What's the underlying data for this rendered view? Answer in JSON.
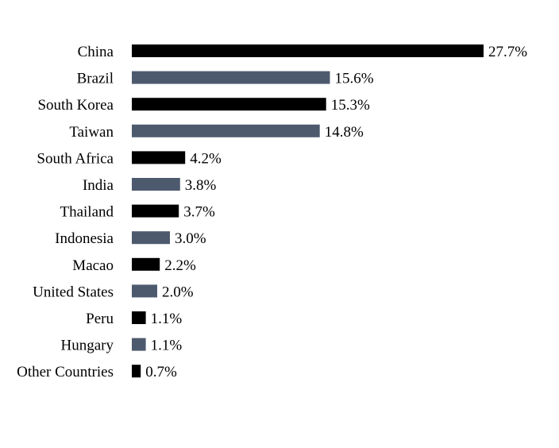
{
  "chart_data": {
    "type": "bar",
    "orientation": "horizontal",
    "title": "",
    "xlabel": "",
    "ylabel": "",
    "xlim": [
      0,
      27.7
    ],
    "grid": false,
    "legend": "none",
    "colors": [
      "#000000",
      "#4d5a6e"
    ],
    "categories": [
      "China",
      "Brazil",
      "South Korea",
      "Taiwan",
      "South Africa",
      "India",
      "Thailand",
      "Indonesia",
      "Macao",
      "United States",
      "Peru",
      "Hungary",
      "Other Countries"
    ],
    "values": [
      27.7,
      15.6,
      15.3,
      14.8,
      4.2,
      3.8,
      3.7,
      3.0,
      2.2,
      2.0,
      1.1,
      1.1,
      0.7
    ],
    "value_labels": [
      "27.7%",
      "15.6%",
      "15.3%",
      "14.8%",
      "4.2%",
      "3.8%",
      "3.7%",
      "3.0%",
      "2.2%",
      "2.0%",
      "1.1%",
      "1.1%",
      "0.7%"
    ]
  }
}
